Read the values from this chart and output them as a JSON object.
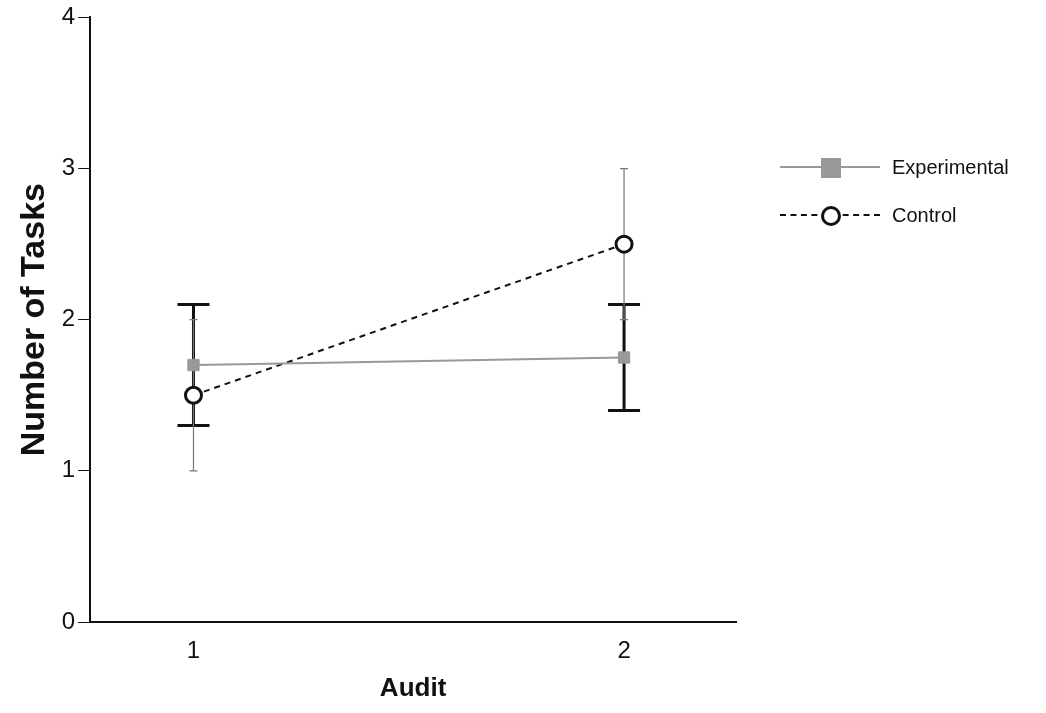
{
  "chart_data": {
    "type": "line",
    "xlabel": "Audit",
    "ylabel": "Number of Tasks",
    "x": [
      1,
      2
    ],
    "xlim": [
      0.76,
      2.26
    ],
    "xticks": [
      1,
      2
    ],
    "ylim": [
      0,
      4
    ],
    "yticks": [
      0,
      1,
      2,
      3,
      4
    ],
    "grid": false,
    "legend": "right",
    "series": [
      {
        "name": "Experimental",
        "color": "#999999",
        "values": [
          1.7,
          1.75
        ],
        "errors": [
          0.4,
          0.35
        ],
        "marker": "square",
        "line_style": "solid"
      },
      {
        "name": "Control",
        "color": "#111111",
        "values": [
          1.5,
          2.5
        ],
        "errors": [
          0.5,
          0.5
        ],
        "marker": "circle",
        "line_style": "dashed"
      }
    ]
  }
}
